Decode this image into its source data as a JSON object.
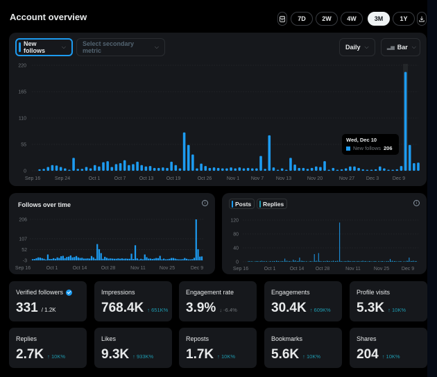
{
  "header": {
    "title": "Account overview",
    "ranges": [
      {
        "label": "7D",
        "active": false
      },
      {
        "label": "2W",
        "active": false
      },
      {
        "label": "4W",
        "active": false
      },
      {
        "label": "3M",
        "active": true
      },
      {
        "label": "1Y",
        "active": false
      }
    ],
    "calendar_icon": "calendar-icon",
    "download_icon": "download-icon"
  },
  "main_chart_controls": {
    "primary_metric": "New follows",
    "secondary_metric_placeholder": "Select secondary metric",
    "interval": "Daily",
    "chart_type": "Bar"
  },
  "tooltip": {
    "date": "Wed, Dec 10",
    "series": "New follows",
    "value": "206"
  },
  "colors": {
    "accent": "#1d9bf0",
    "posts": "#1d9bf0",
    "replies": "#1e9bb0",
    "delta_up": "#1e9bb0",
    "panel": "#16181c"
  },
  "chart_data": [
    {
      "type": "bar",
      "title": "New follows",
      "xlabel": "",
      "ylabel": "",
      "ylim": [
        0,
        220
      ],
      "yticks": [
        "0",
        "55",
        "110",
        "165",
        "220"
      ],
      "xticks": [
        "Sep 16",
        "Sep 24",
        "Oct 1",
        "Oct 7",
        "Oct 13",
        "Oct 19",
        "Oct 26",
        "Nov 1",
        "Nov 7",
        "Nov 13",
        "Nov 20",
        "Nov 27",
        "Dec 3",
        "Dec 9"
      ],
      "x_start": "Sep 18",
      "values": [
        3,
        4,
        8,
        12,
        11,
        8,
        5,
        1,
        27,
        4,
        4,
        8,
        5,
        12,
        9,
        18,
        20,
        8,
        14,
        16,
        22,
        12,
        14,
        19,
        12,
        9,
        10,
        6,
        6,
        7,
        6,
        19,
        12,
        5,
        80,
        54,
        34,
        5,
        15,
        10,
        6,
        7,
        6,
        5,
        5,
        7,
        5,
        7,
        5,
        6,
        5,
        5,
        31,
        4,
        74,
        7,
        1,
        5,
        2,
        27,
        13,
        6,
        6,
        4,
        6,
        9,
        8,
        20,
        2,
        6,
        2,
        3,
        5,
        9,
        9,
        6,
        3,
        2,
        2,
        3,
        9,
        5,
        2,
        2,
        3,
        10,
        206,
        54,
        16,
        17
      ],
      "highlight": {
        "label": "Wed, Dec 10",
        "value": 206
      },
      "grid": true
    },
    {
      "type": "bar",
      "title": "Follows over time",
      "ylim": [
        -3,
        206
      ],
      "yticks": [
        "-3",
        "52",
        "107",
        "206"
      ],
      "xticks": [
        "Sep 16",
        "Oct 1",
        "Oct 14",
        "Oct 28",
        "Nov 11",
        "Nov 25",
        "Dec 9"
      ],
      "values": [
        3,
        4,
        8,
        12,
        11,
        8,
        5,
        1,
        27,
        4,
        4,
        8,
        5,
        12,
        9,
        18,
        20,
        8,
        14,
        16,
        22,
        12,
        14,
        19,
        12,
        9,
        10,
        6,
        6,
        7,
        6,
        19,
        12,
        5,
        80,
        54,
        34,
        5,
        15,
        10,
        6,
        7,
        6,
        5,
        5,
        7,
        5,
        7,
        5,
        6,
        5,
        5,
        31,
        4,
        74,
        7,
        1,
        5,
        2,
        27,
        13,
        6,
        6,
        4,
        6,
        9,
        8,
        20,
        2,
        6,
        2,
        3,
        5,
        9,
        9,
        6,
        3,
        2,
        2,
        3,
        9,
        5,
        2,
        2,
        3,
        10,
        206,
        54,
        16,
        17
      ],
      "grid": true
    },
    {
      "type": "bar",
      "title": "Posts and Replies",
      "legend": [
        "Posts",
        "Replies"
      ],
      "ylim": [
        0,
        120
      ],
      "yticks": [
        "0",
        "40",
        "80",
        "120"
      ],
      "xticks": [
        "Sep 16",
        "Oct 1",
        "Oct 14",
        "Oct 28",
        "Nov 11",
        "Nov 25",
        "Dec 9"
      ],
      "series": [
        {
          "name": "Posts",
          "values": [
            0,
            2,
            1,
            0,
            1,
            2,
            1,
            3,
            2,
            1,
            0,
            2,
            1,
            2,
            3,
            2,
            1,
            2,
            9,
            3,
            2,
            1,
            6,
            4,
            2,
            12,
            3,
            2,
            1,
            0,
            2,
            1,
            22,
            3,
            25,
            2,
            1,
            2,
            3,
            2,
            1,
            3,
            2,
            3,
            113,
            2,
            1,
            2,
            3,
            2,
            1,
            2,
            1,
            2,
            1,
            3,
            2,
            1,
            2,
            1,
            1,
            2,
            0,
            1,
            2,
            1,
            1,
            2,
            8,
            3,
            2,
            1,
            1,
            2,
            0,
            1,
            3,
            12,
            2,
            3,
            2
          ]
        },
        {
          "name": "Replies",
          "values": [
            1,
            1,
            2,
            1,
            2,
            1,
            2,
            1,
            1,
            2,
            1,
            1,
            2,
            1,
            2,
            1,
            2,
            1,
            2,
            1,
            2,
            1,
            2,
            1,
            2,
            1,
            2,
            1,
            2,
            1,
            2,
            1,
            2,
            1,
            2,
            1,
            2,
            1,
            2,
            1,
            2,
            1,
            2,
            1,
            2,
            1,
            2,
            1,
            2,
            1,
            2,
            1,
            2,
            1,
            2,
            1,
            2,
            1,
            2,
            1,
            2,
            1,
            2,
            1,
            2,
            1,
            2,
            1,
            2,
            1,
            2,
            1,
            2,
            1,
            2,
            1,
            2,
            1,
            2,
            1,
            2
          ]
        }
      ],
      "grid": true
    }
  ],
  "panels": {
    "follows_title": "Follows over time",
    "legend_posts": "Posts",
    "legend_replies": "Replies"
  },
  "stats": [
    {
      "label": "Verified followers",
      "value": "331",
      "delta": "/ 1.2K",
      "kind": "of",
      "verified": true
    },
    {
      "label": "Impressions",
      "value": "768.4K",
      "delta": "↑ 651K%",
      "kind": "up"
    },
    {
      "label": "Engagement rate",
      "value": "3.9%",
      "delta": "↓ -6.4%",
      "kind": "neg"
    },
    {
      "label": "Engagements",
      "value": "30.4K",
      "delta": "↑ 609K%",
      "kind": "up"
    },
    {
      "label": "Profile visits",
      "value": "5.3K",
      "delta": "↑ 10K%",
      "kind": "up"
    },
    {
      "label": "Replies",
      "value": "2.7K",
      "delta": "↑ 10K%",
      "kind": "up"
    },
    {
      "label": "Likes",
      "value": "9.3K",
      "delta": "↑ 933K%",
      "kind": "up"
    },
    {
      "label": "Reposts",
      "value": "1.7K",
      "delta": "↑ 10K%",
      "kind": "up"
    },
    {
      "label": "Bookmarks",
      "value": "5.6K",
      "delta": "↑ 10K%",
      "kind": "up"
    },
    {
      "label": "Shares",
      "value": "204",
      "delta": "↑ 10K%",
      "kind": "up"
    }
  ]
}
